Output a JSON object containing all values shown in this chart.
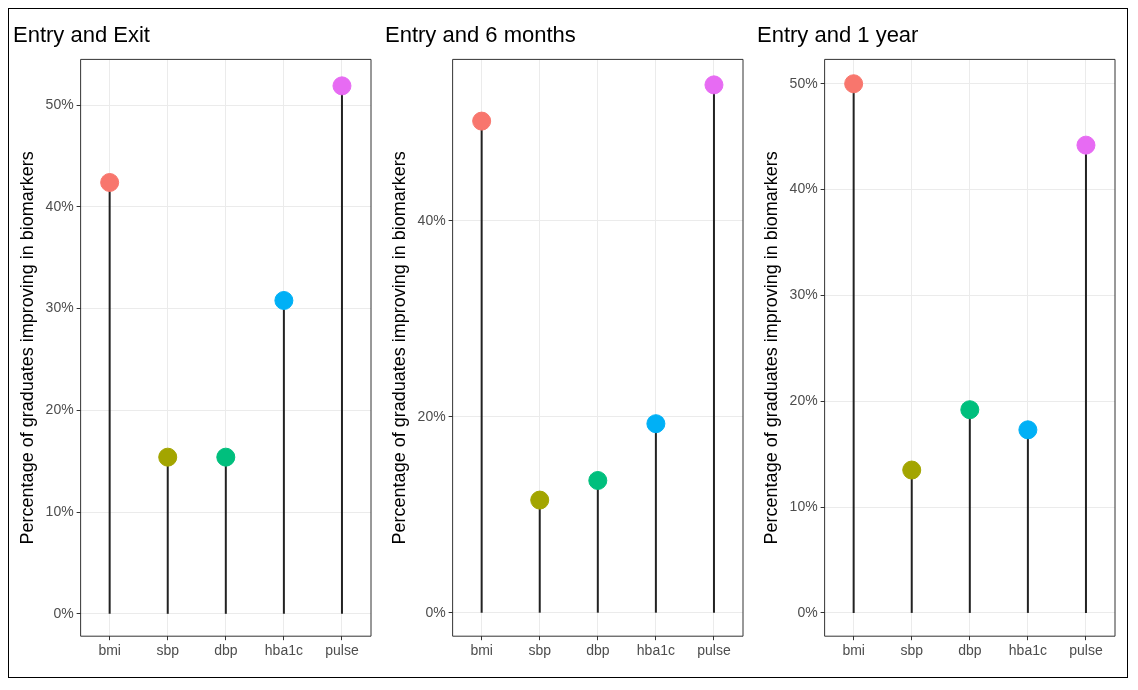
{
  "chart_data": [
    {
      "type": "lollipop",
      "title": "Entry and Exit",
      "ylabel": "Percentage of graduates improving in biomarkers",
      "categories": [
        "bmi",
        "sbp",
        "dbp",
        "hba1c",
        "pulse"
      ],
      "values": [
        42.4,
        15.4,
        15.4,
        30.8,
        51.9
      ],
      "colors": [
        "#f8766d",
        "#a3a500",
        "#00bf7d",
        "#00b0f6",
        "#e76bf3"
      ],
      "ylim": [
        -2.2,
        54.5
      ],
      "yticks": [
        {
          "value": 0,
          "label": "0%"
        },
        {
          "value": 10,
          "label": "10%"
        },
        {
          "value": 20,
          "label": "20%"
        },
        {
          "value": 30,
          "label": "30%"
        },
        {
          "value": 40,
          "label": "40%"
        },
        {
          "value": 50,
          "label": "50%"
        }
      ],
      "grid": true
    },
    {
      "type": "lollipop",
      "title": "Entry and 6 months",
      "ylabel": "Percentage of graduates improving in biomarkers",
      "categories": [
        "bmi",
        "sbp",
        "dbp",
        "hba1c",
        "pulse"
      ],
      "values": [
        50.2,
        11.5,
        13.5,
        19.3,
        53.9
      ],
      "colors": [
        "#f8766d",
        "#a3a500",
        "#00bf7d",
        "#00b0f6",
        "#e76bf3"
      ],
      "ylim": [
        -2.4,
        56.5
      ],
      "yticks": [
        {
          "value": 0,
          "label": "0%"
        },
        {
          "value": 20,
          "label": "20%"
        },
        {
          "value": 40,
          "label": "40%"
        }
      ],
      "grid": true
    },
    {
      "type": "lollipop",
      "title": "Entry and 1 year",
      "ylabel": "Percentage of graduates improving in biomarkers",
      "categories": [
        "bmi",
        "sbp",
        "dbp",
        "hba1c",
        "pulse"
      ],
      "values": [
        50,
        13.5,
        19.2,
        17.3,
        44.2
      ],
      "colors": [
        "#f8766d",
        "#a3a500",
        "#00bf7d",
        "#00b0f6",
        "#e76bf3"
      ],
      "ylim": [
        -2.2,
        52.3
      ],
      "yticks": [
        {
          "value": 0,
          "label": "0%"
        },
        {
          "value": 10,
          "label": "10%"
        },
        {
          "value": 20,
          "label": "20%"
        },
        {
          "value": 30,
          "label": "30%"
        },
        {
          "value": 40,
          "label": "40%"
        },
        {
          "value": 50,
          "label": "50%"
        }
      ],
      "grid": true
    }
  ]
}
